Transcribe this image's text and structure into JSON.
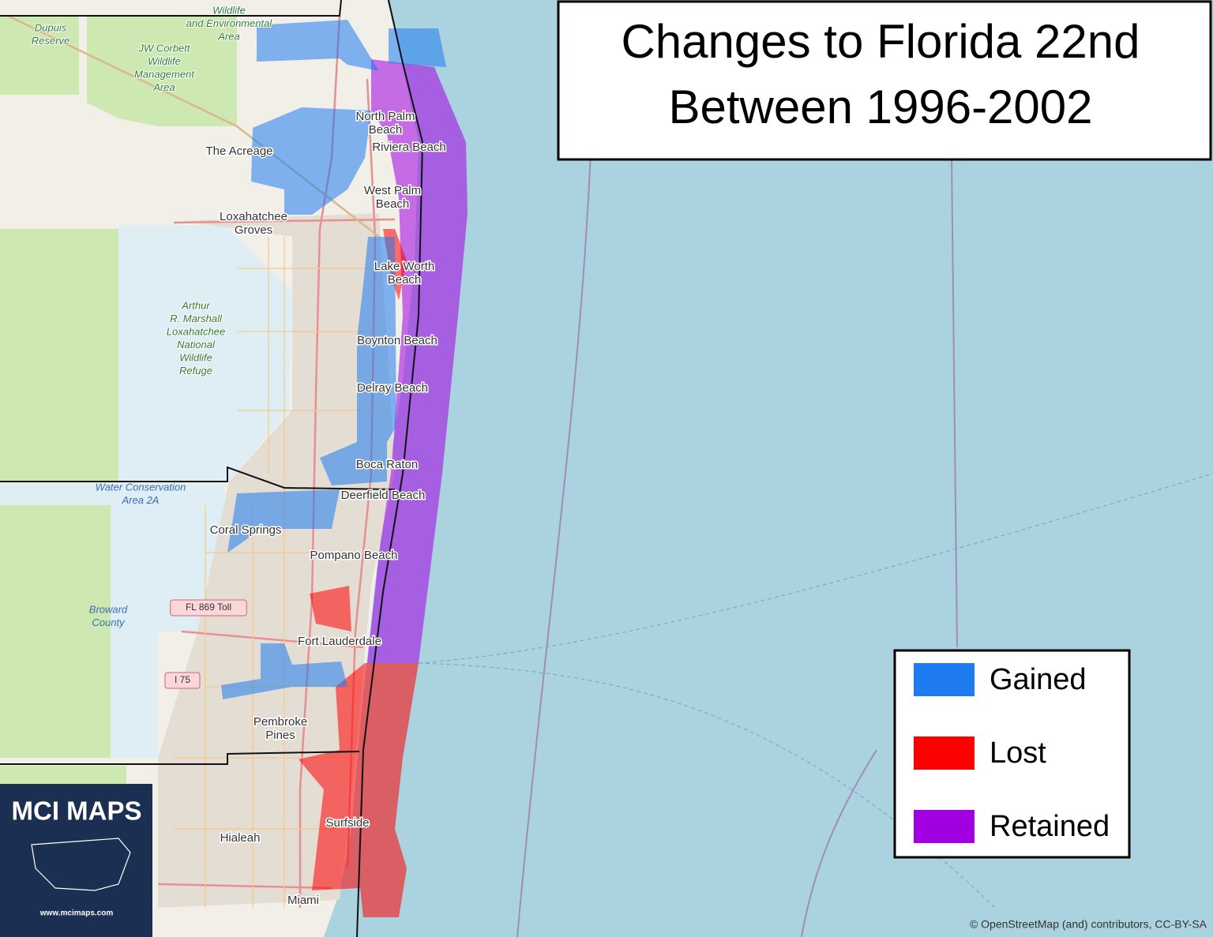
{
  "title": {
    "lines": [
      "Changes to Florida 22nd",
      "Between 1996-2002"
    ]
  },
  "legend": {
    "items": [
      {
        "label": "Gained",
        "color": "#1e7cf0"
      },
      {
        "label": "Lost",
        "color": "#ff0000"
      },
      {
        "label": "Retained",
        "color": "#a000e0"
      }
    ]
  },
  "places": [
    {
      "kind": "park",
      "lines": [
        "Dupuis",
        "Reserve"
      ]
    },
    {
      "kind": "park",
      "lines": [
        "JW Corbett",
        "Wildlife",
        "Management",
        "Area"
      ]
    },
    {
      "kind": "park",
      "lines": [
        "Wildlife",
        "and Environmental",
        "Area"
      ]
    },
    {
      "kind": "place",
      "lines": [
        "North Palm",
        "Beach"
      ]
    },
    {
      "kind": "place",
      "lines": [
        "Riviera Beach"
      ]
    },
    {
      "kind": "place",
      "lines": [
        "The Acreage"
      ]
    },
    {
      "kind": "place",
      "lines": [
        "West Palm",
        "Beach"
      ]
    },
    {
      "kind": "place",
      "lines": [
        "Loxahatchee",
        "Groves"
      ]
    },
    {
      "kind": "place",
      "lines": [
        "Lake Worth",
        "Beach"
      ]
    },
    {
      "kind": "park",
      "lines": [
        "Arthur",
        "R. Marshall",
        "Loxahatchee",
        "National",
        "Wildlife",
        "Refuge"
      ]
    },
    {
      "kind": "place",
      "lines": [
        "Boynton Beach"
      ]
    },
    {
      "kind": "place",
      "lines": [
        "Delray Beach"
      ]
    },
    {
      "kind": "place",
      "lines": [
        "Boca Raton"
      ]
    },
    {
      "kind": "water",
      "lines": [
        "Water Conservation",
        "Area 2A"
      ]
    },
    {
      "kind": "place",
      "lines": [
        "Deerfield Beach"
      ]
    },
    {
      "kind": "place",
      "lines": [
        "Coral Springs"
      ]
    },
    {
      "kind": "place",
      "lines": [
        "Pompano Beach"
      ]
    },
    {
      "kind": "shield",
      "lines": [
        "FL 869 Toll"
      ]
    },
    {
      "kind": "water",
      "lines": [
        "Broward",
        "County"
      ]
    },
    {
      "kind": "place",
      "lines": [
        "Fort Lauderdale"
      ]
    },
    {
      "kind": "shield",
      "lines": [
        "I 75"
      ]
    },
    {
      "kind": "place",
      "lines": [
        "Pembroke",
        "Pines"
      ]
    },
    {
      "kind": "place",
      "lines": [
        "Hialeah"
      ]
    },
    {
      "kind": "place",
      "lines": [
        "Surfside"
      ]
    },
    {
      "kind": "place",
      "lines": [
        "Miami"
      ]
    }
  ],
  "logo": {
    "name": "MCI MAPS",
    "url": "www.mcimaps.com"
  },
  "attribution": "© OpenStreetMap (and) contributors, CC-BY-SA"
}
